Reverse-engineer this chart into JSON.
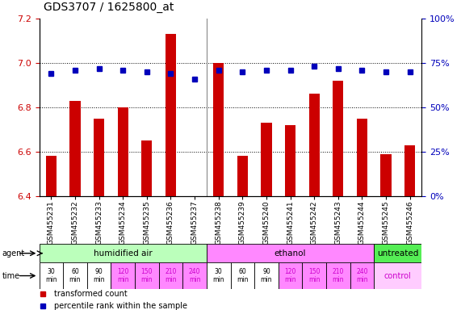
{
  "title": "GDS3707 / 1625800_at",
  "samples": [
    "GSM455231",
    "GSM455232",
    "GSM455233",
    "GSM455234",
    "GSM455235",
    "GSM455236",
    "GSM455237",
    "GSM455238",
    "GSM455239",
    "GSM455240",
    "GSM455241",
    "GSM455242",
    "GSM455243",
    "GSM455244",
    "GSM455245",
    "GSM455246"
  ],
  "bar_values": [
    6.58,
    6.83,
    6.75,
    6.8,
    6.65,
    7.13,
    6.4,
    7.0,
    6.58,
    6.73,
    6.72,
    6.86,
    6.92,
    6.75,
    6.59,
    6.63
  ],
  "dot_values": [
    69,
    71,
    72,
    71,
    70,
    69,
    66,
    71,
    70,
    71,
    71,
    73,
    72,
    71,
    70,
    70
  ],
  "ylim_left": [
    6.4,
    7.2
  ],
  "ylim_right": [
    0,
    100
  ],
  "yticks_left": [
    6.4,
    6.6,
    6.8,
    7.0,
    7.2
  ],
  "yticks_right": [
    0,
    25,
    50,
    75,
    100
  ],
  "bar_color": "#cc0000",
  "dot_color": "#0000bb",
  "bar_baseline": 6.4,
  "grid_lines": [
    6.6,
    6.8,
    7.0
  ],
  "label_color_left": "#cc0000",
  "label_color_right": "#0000bb",
  "bg_color": "#ffffff",
  "agent_data": [
    {
      "start": 0,
      "end": 7,
      "color": "#bbffbb",
      "label": "humidified air"
    },
    {
      "start": 7,
      "end": 14,
      "color": "#ff88ff",
      "label": "ethanol"
    },
    {
      "start": 14,
      "end": 16,
      "color": "#55ee55",
      "label": "untreated"
    }
  ],
  "time_data": [
    {
      "start": 0,
      "end": 1,
      "color": "#ffffff",
      "label": "30\nmin"
    },
    {
      "start": 1,
      "end": 2,
      "color": "#ffffff",
      "label": "60\nmin"
    },
    {
      "start": 2,
      "end": 3,
      "color": "#ffffff",
      "label": "90\nmin"
    },
    {
      "start": 3,
      "end": 4,
      "color": "#ff88ff",
      "label": "120\nmin"
    },
    {
      "start": 4,
      "end": 5,
      "color": "#ff88ff",
      "label": "150\nmin"
    },
    {
      "start": 5,
      "end": 6,
      "color": "#ff88ff",
      "label": "210\nmin"
    },
    {
      "start": 6,
      "end": 7,
      "color": "#ff88ff",
      "label": "240\nmin"
    },
    {
      "start": 7,
      "end": 8,
      "color": "#ffffff",
      "label": "30\nmin"
    },
    {
      "start": 8,
      "end": 9,
      "color": "#ffffff",
      "label": "60\nmin"
    },
    {
      "start": 9,
      "end": 10,
      "color": "#ffffff",
      "label": "90\nmin"
    },
    {
      "start": 10,
      "end": 11,
      "color": "#ff88ff",
      "label": "120\nmin"
    },
    {
      "start": 11,
      "end": 12,
      "color": "#ff88ff",
      "label": "150\nmin"
    },
    {
      "start": 12,
      "end": 13,
      "color": "#ff88ff",
      "label": "210\nmin"
    },
    {
      "start": 13,
      "end": 14,
      "color": "#ff88ff",
      "label": "240\nmin"
    },
    {
      "start": 14,
      "end": 16,
      "color": "#ffccff",
      "label": "control"
    }
  ],
  "legend": [
    {
      "color": "#cc0000",
      "label": "transformed count"
    },
    {
      "color": "#0000bb",
      "label": "percentile rank within the sample"
    }
  ]
}
